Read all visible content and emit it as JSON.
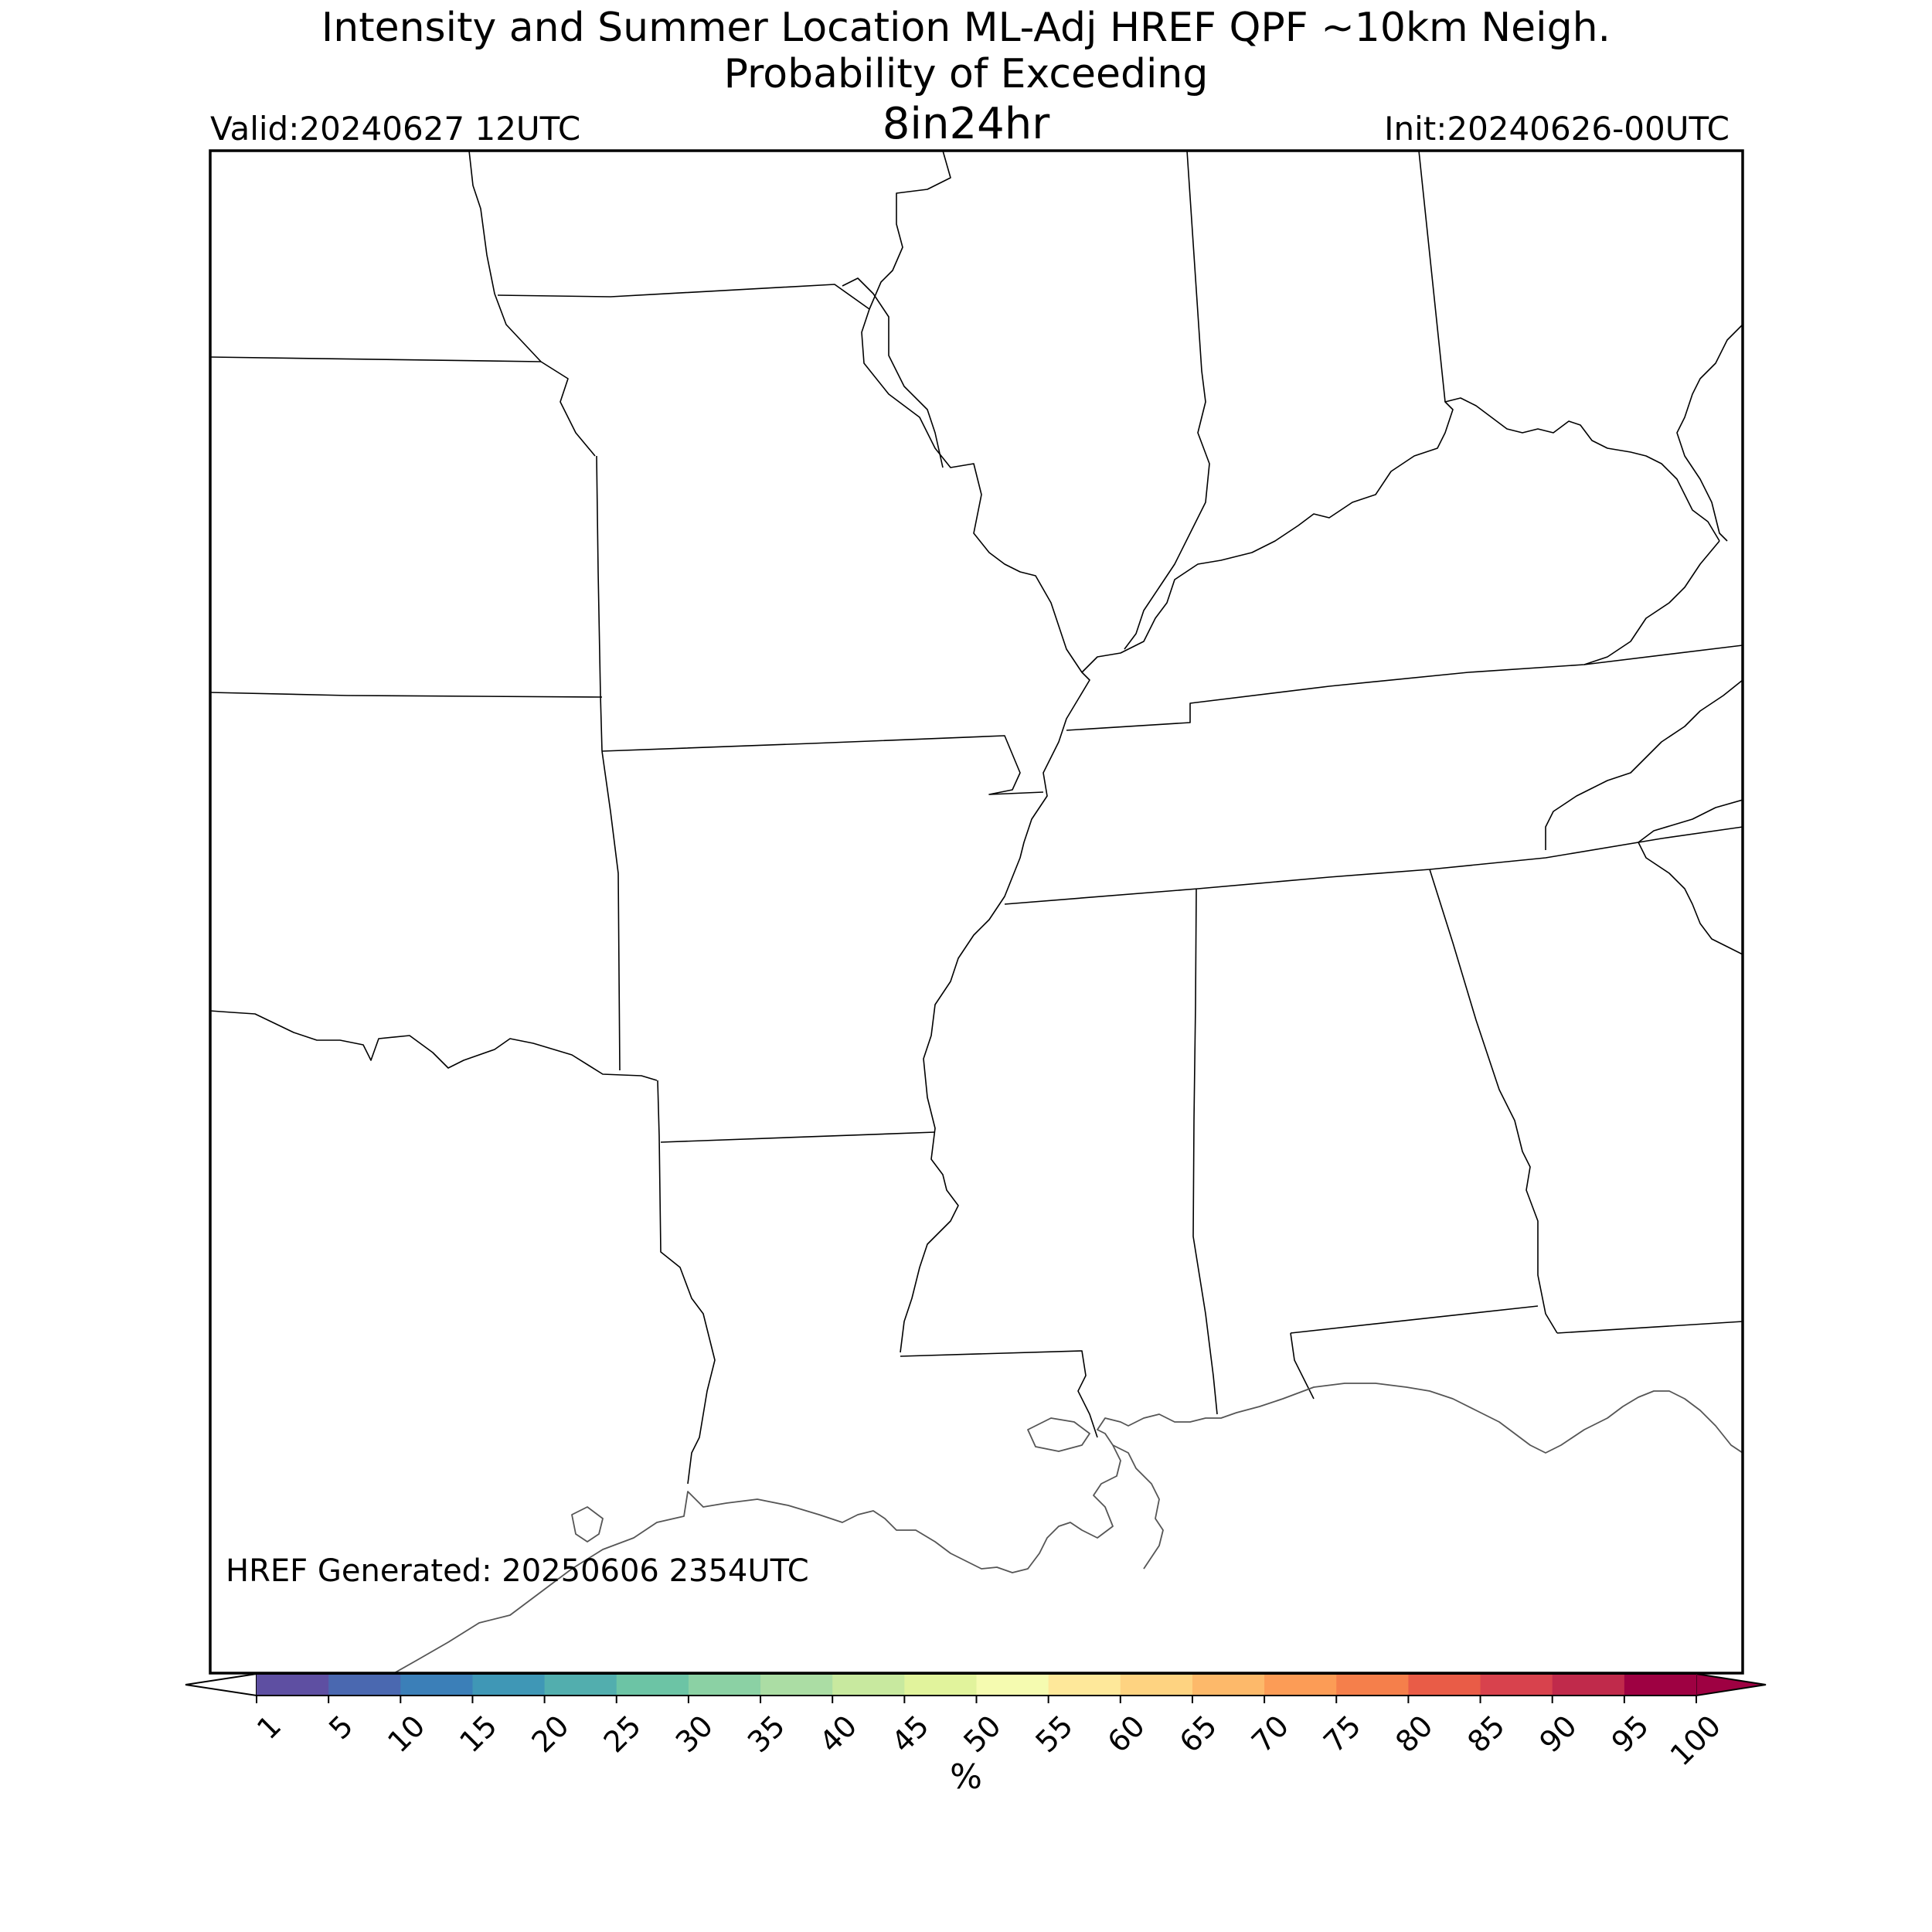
{
  "title": {
    "line1": "Intensity and Summer Location ML-Adj HREF QPF ~10km Neigh.",
    "line2": "Probability of Exceeding",
    "line3": "8in24hr"
  },
  "valid_label": "Valid:20240627 12UTC",
  "init_label": "Init:20240626-00UTC",
  "generated_label": "HREF Generated: 20250606 2354UTC",
  "colorbar": {
    "unit": "%",
    "ticks": [
      "1",
      "5",
      "10",
      "15",
      "20",
      "25",
      "30",
      "35",
      "40",
      "45",
      "50",
      "55",
      "60",
      "65",
      "70",
      "75",
      "80",
      "85",
      "90",
      "95",
      "100"
    ],
    "colors": [
      "#5e4fa2",
      "#4a68b0",
      "#3b7fb8",
      "#3f97b6",
      "#52aeae",
      "#6cc4a5",
      "#8bd1a4",
      "#abdda4",
      "#c8e99f",
      "#e1f39c",
      "#f5fbb0",
      "#fee89a",
      "#fed381",
      "#fdb96a",
      "#fc9c56",
      "#f57f4b",
      "#e95c47",
      "#d8424d",
      "#c02a4b",
      "#9e0142"
    ],
    "under_color": "#ffffff",
    "over_color": "#9e0142"
  },
  "map": {
    "region": "South-central and southeastern United States",
    "features": [
      "state boundaries",
      "Gulf coastline"
    ],
    "shaded_probability_areas": 0
  }
}
